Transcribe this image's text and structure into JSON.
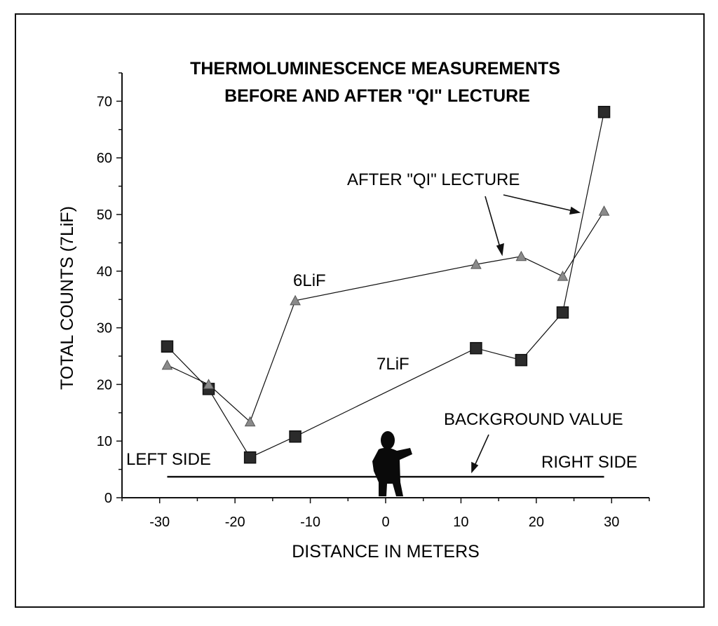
{
  "colors": {
    "background": "#ffffff",
    "ink": "#111111",
    "square_fill": "#2b2b2b",
    "triangle_fill": "#8a8a8a"
  },
  "chart_data": {
    "type": "line",
    "title": [
      "THERMOLUMINESCENCE MEASUREMENTS",
      "BEFORE AND AFTER \"QI\" LECTURE"
    ],
    "xlabel": "DISTANCE IN METERS",
    "ylabel": "TOTAL COUNTS (7LiF)",
    "xlim": [
      -35,
      35
    ],
    "ylim": [
      0,
      75
    ],
    "xticks": [
      -30,
      -20,
      -10,
      0,
      10,
      20,
      30
    ],
    "yticks": [
      0,
      10,
      20,
      30,
      40,
      50,
      60,
      70
    ],
    "grid": false,
    "series": [
      {
        "name": "7LiF",
        "marker": "square",
        "x": [
          -29,
          -23.5,
          -18,
          -12,
          12,
          18,
          23.5,
          29
        ],
        "y": [
          26.7,
          19.2,
          7.1,
          10.8,
          26.4,
          24.3,
          32.7,
          68.1
        ]
      },
      {
        "name": "6LiF",
        "marker": "triangle",
        "x": [
          -29,
          -23.5,
          -18,
          -12,
          12,
          18,
          23.5,
          29
        ],
        "y": [
          23.4,
          20.0,
          13.4,
          34.8,
          41.2,
          42.6,
          39.1,
          50.6
        ]
      }
    ],
    "background_value": {
      "label": "BACKGROUND VALUE",
      "x": [
        -29,
        29
      ],
      "y": 3.7
    },
    "annotations": {
      "after_lecture": "AFTER \"QI\" LECTURE",
      "left_side": "LEFT SIDE",
      "right_side": "RIGHT SIDE",
      "label_6lif": "6LiF",
      "label_7lif": "7LiF"
    }
  }
}
